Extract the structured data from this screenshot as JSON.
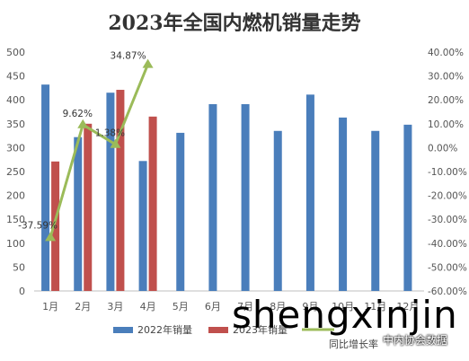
{
  "chart_data": {
    "type": "bar",
    "title": "2023年全国内燃机销量走势",
    "categories": [
      "1月",
      "2月",
      "3月",
      "4月",
      "5月",
      "6月",
      "7月",
      "8月",
      "9月",
      "10月",
      "11月",
      "12月"
    ],
    "series": [
      {
        "name": "2022年销量",
        "values": [
          432,
          322,
          415,
          272,
          331,
          391,
          391,
          335,
          411,
          363,
          335,
          348
        ],
        "color": "#4a7ebb"
      },
      {
        "name": "2023年销量",
        "values": [
          271,
          350,
          421,
          365,
          null,
          null,
          null,
          null,
          null,
          null,
          null,
          null
        ],
        "color": "#c0504d"
      },
      {
        "name": "同比增长率",
        "axis": "right",
        "values": [
          -37.59,
          9.62,
          1.38,
          34.87,
          null,
          null,
          null,
          null,
          null,
          null,
          null,
          null
        ],
        "labels": [
          "-37.59%",
          "9.62%",
          "1.38%",
          "34.87%"
        ],
        "color": "#9bbb59"
      }
    ],
    "ylim": [
      0,
      500
    ],
    "y_ticks": [
      0,
      50,
      100,
      150,
      200,
      250,
      300,
      350,
      400,
      450,
      500
    ],
    "y2lim": [
      -60,
      40
    ],
    "y2_ticks": [
      40,
      30,
      20,
      10,
      0,
      -10,
      -20,
      -30,
      -40,
      -50,
      -60
    ],
    "y2_tick_labels": [
      "40.00%",
      "30.00%",
      "20.00%",
      "10.00%",
      "0.00%",
      "-10.00%",
      "-20.00%",
      "-30.00%",
      "-40.00%",
      "-50.00%",
      "-60.00%"
    ],
    "grid": false,
    "legend_placement": "bottom"
  },
  "watermark": {
    "main": "shengxinjin",
    "sub": "中内协会数据"
  }
}
